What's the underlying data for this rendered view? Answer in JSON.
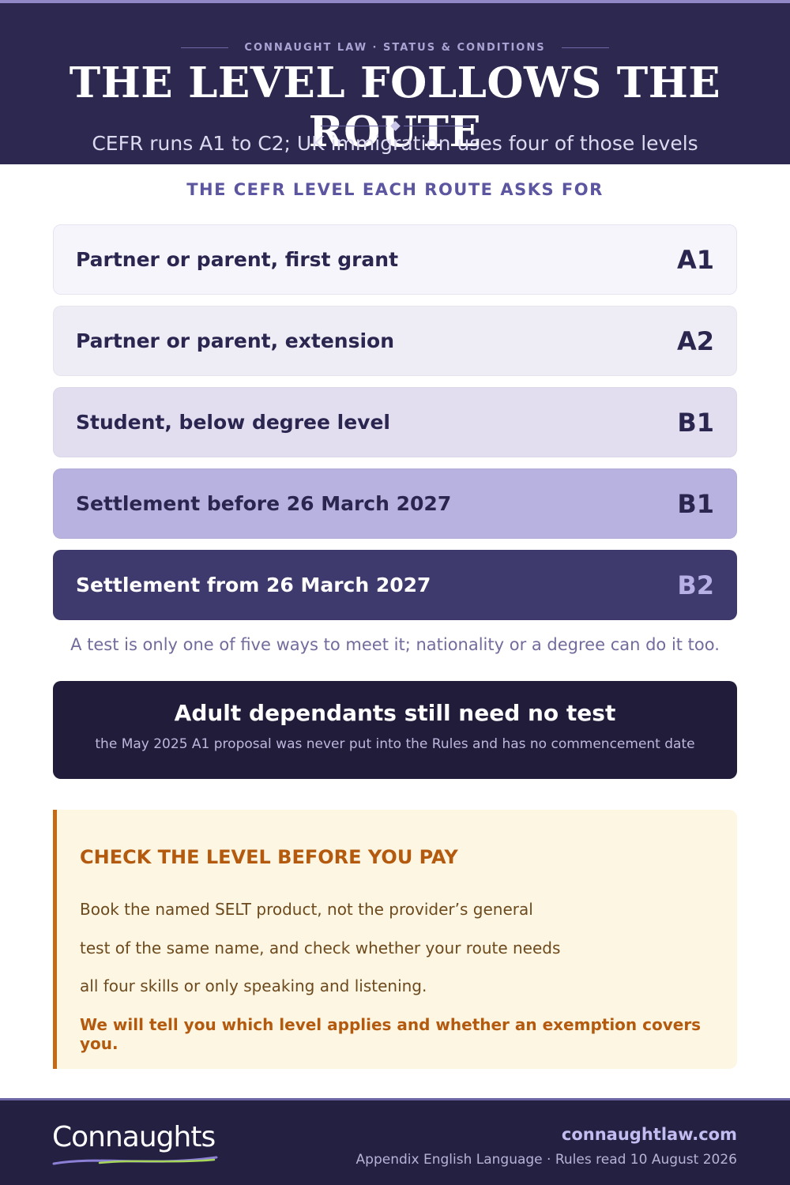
{
  "header": {
    "kicker": "CONNAUGHT LAW · STATUS & CONDITIONS",
    "title": "THE LEVEL FOLLOWS THE ROUTE",
    "subtitle": "CEFR runs A1 to C2; UK immigration uses four of those levels"
  },
  "section_title": "THE CEFR LEVEL EACH ROUTE ASKS FOR",
  "routes": [
    {
      "label": "Partner or parent, first grant",
      "level": "A1"
    },
    {
      "label": "Partner or parent, extension",
      "level": "A2"
    },
    {
      "label": "Student, below degree level",
      "level": "B1"
    },
    {
      "label": "Settlement before 26 March 2027",
      "level": "B1"
    },
    {
      "label": "Settlement from 26 March 2027",
      "level": "B2"
    }
  ],
  "note": "A test is only one of five ways to meet it; nationality or a degree can do it too.",
  "dependants": {
    "title": "Adult dependants still need no test",
    "subtitle": "the May 2025 A1 proposal was never put into the Rules and has no commencement date"
  },
  "callout": {
    "title": "CHECK THE LEVEL BEFORE YOU PAY",
    "body_lines": [
      "Book the named SELT product, not the provider’s general",
      "test of the same name, and check whether your route needs",
      "all four skills or only speaking and listening."
    ],
    "cta": "We will tell you which level applies and whether an exemption covers you."
  },
  "footer": {
    "logo": "Connaughts",
    "site": "connaughtlaw.com",
    "source": "Appendix English Language · Rules read 10 August 2026"
  },
  "colors": {
    "header_bg": "#2c2850",
    "accent": "#5c55a0",
    "callout_accent": "#c56a12",
    "callout_bg": "#fdf6e3"
  }
}
